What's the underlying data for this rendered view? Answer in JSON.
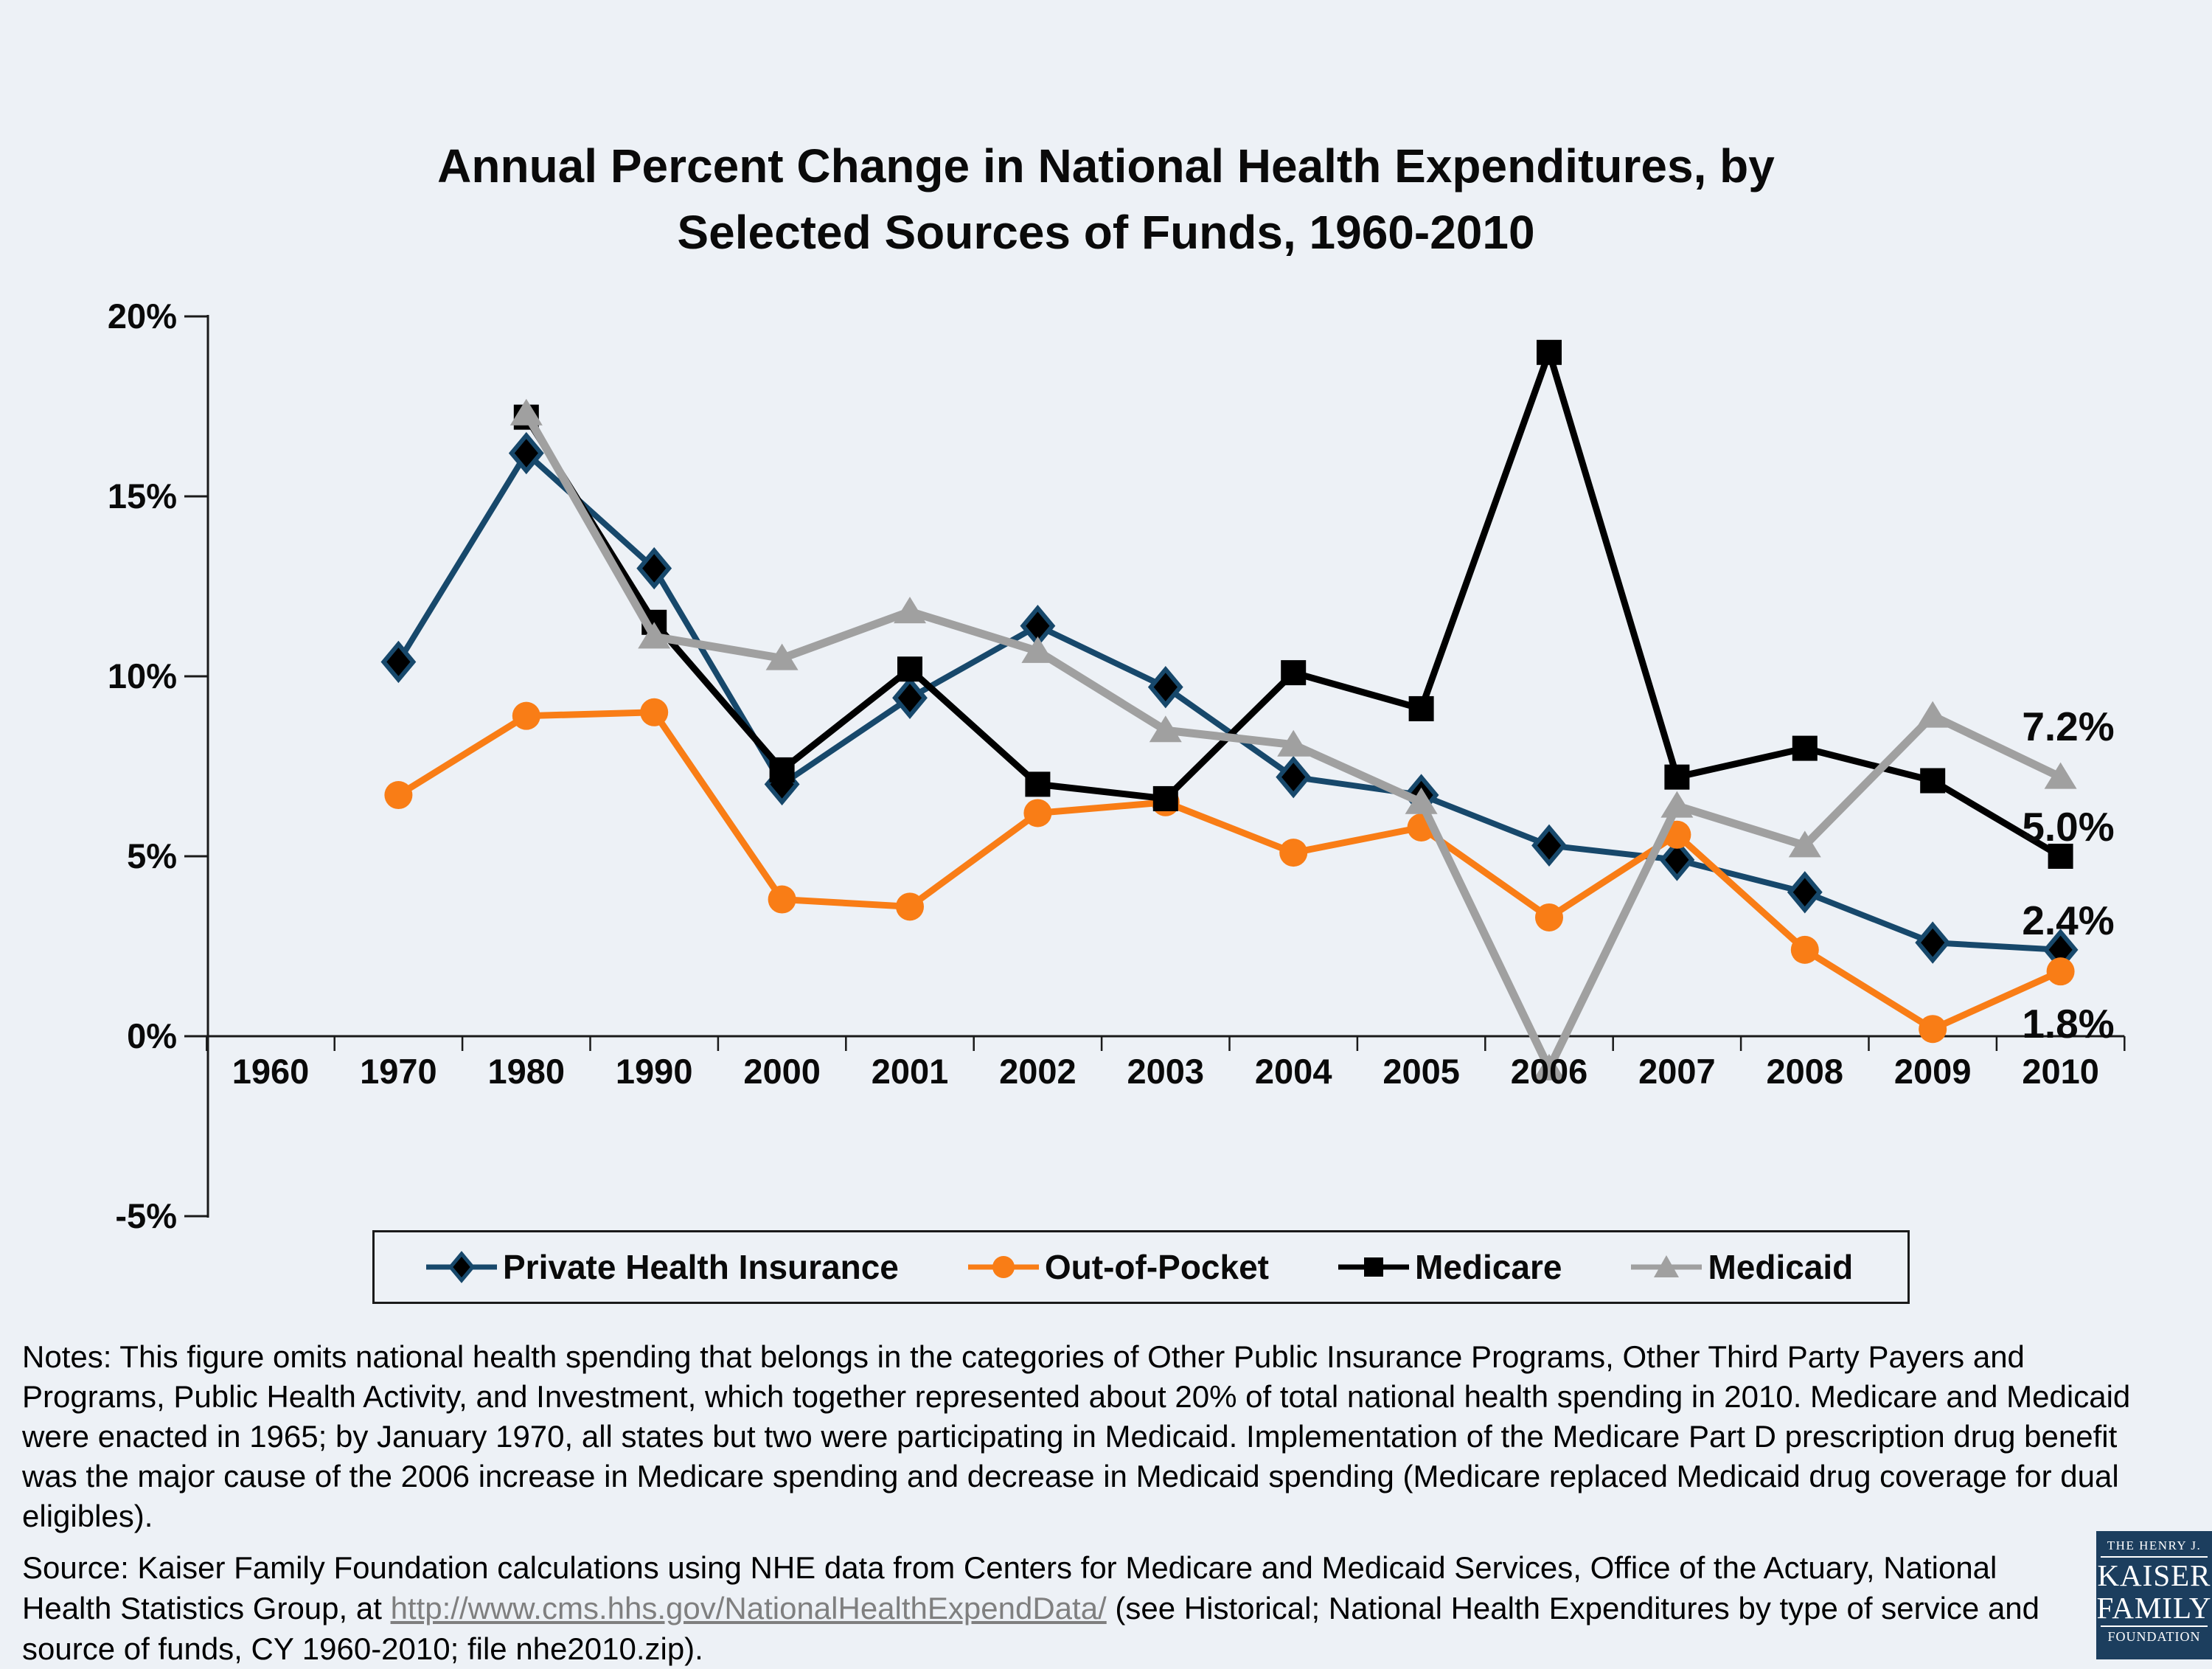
{
  "page": {
    "background": "#edf1f6"
  },
  "title": {
    "line1": "Annual Percent Change in National Health Expenditures, by",
    "line2": "Selected Sources of Funds, 1960-2010"
  },
  "chart_data": {
    "type": "line",
    "title": "Annual Percent Change in National Health Expenditures, by Selected Sources of Funds, 1960-2010",
    "categories": [
      "1960",
      "1970",
      "1980",
      "1990",
      "2000",
      "2001",
      "2002",
      "2003",
      "2004",
      "2005",
      "2006",
      "2007",
      "2008",
      "2009",
      "2010"
    ],
    "ylim": [
      -5,
      20
    ],
    "y_ticks": [
      {
        "label": "20%",
        "value": 20
      },
      {
        "label": "15%",
        "value": 15
      },
      {
        "label": "10%",
        "value": 10
      },
      {
        "label": "5%",
        "value": 5
      },
      {
        "label": "0%",
        "value": 0
      },
      {
        "label": "-5%",
        "value": -5
      }
    ],
    "grid": false,
    "legend_position": "bottom",
    "series": [
      {
        "name": "Private Health Insurance",
        "color": "#17486b",
        "marker": "diamond",
        "marker_fill": "#000000",
        "end_label": "2.4%",
        "values": [
          null,
          10.4,
          16.2,
          13.0,
          7.0,
          9.4,
          11.4,
          9.7,
          7.2,
          6.7,
          5.3,
          4.9,
          4.0,
          2.6,
          2.4
        ]
      },
      {
        "name": "Out-of-Pocket",
        "color": "#f97d16",
        "marker": "circle",
        "marker_fill": "#f97d16",
        "end_label": "1.8%",
        "values": [
          null,
          6.7,
          8.9,
          9.0,
          3.8,
          3.6,
          6.2,
          6.5,
          5.1,
          5.8,
          3.3,
          5.6,
          2.4,
          0.2,
          1.8
        ]
      },
      {
        "name": "Medicare",
        "color": "#000000",
        "marker": "square",
        "marker_fill": "#000000",
        "end_label": "5.0%",
        "values": [
          null,
          null,
          17.2,
          11.5,
          7.4,
          10.2,
          7.0,
          6.6,
          10.1,
          9.1,
          19.0,
          7.2,
          8.0,
          7.1,
          5.0
        ]
      },
      {
        "name": "Medicaid",
        "color": "#a0a0a0",
        "marker": "triangle",
        "marker_fill": "#a0a0a0",
        "end_label": "7.2%",
        "values": [
          null,
          null,
          17.3,
          11.1,
          10.5,
          11.8,
          10.7,
          8.5,
          8.1,
          6.5,
          -0.9,
          6.4,
          5.3,
          8.9,
          7.2
        ]
      }
    ]
  },
  "notes": "Notes: This figure omits national health spending that belongs in the categories of Other Public Insurance Programs, Other Third Party Payers and Programs, Public Health Activity, and Investment, which together represented about 20% of total national health spending in 2010. Medicare and Medicaid were enacted in 1965; by January 1970, all states but two were participating in Medicaid. Implementation of the Medicare Part D prescription drug benefit was the major cause of the 2006 increase in Medicare spending and decrease in Medicaid spending (Medicare replaced Medicaid drug coverage for dual eligibles).",
  "source": {
    "prefix": "Source: Kaiser Family Foundation calculations using NHE data from Centers for Medicare and Medicaid Services, Office of the Actuary, National Health Statistics Group, at ",
    "link": "http://www.cms.hhs.gov/NationalHealthExpendData/",
    "suffix": " (see Historical; National Health Expenditures by type of service and source of funds, CY 1960-2010; file nhe2010.zip)."
  },
  "logo": {
    "top": "THE HENRY J.",
    "name1": "KAISER",
    "name2": "FAMILY",
    "bottom": "FOUNDATION"
  }
}
